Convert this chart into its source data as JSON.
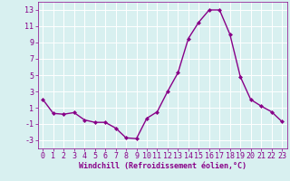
{
  "x": [
    0,
    1,
    2,
    3,
    4,
    5,
    6,
    7,
    8,
    9,
    10,
    11,
    12,
    13,
    14,
    15,
    16,
    17,
    18,
    19,
    20,
    21,
    22,
    23
  ],
  "y": [
    2.0,
    0.3,
    0.2,
    0.4,
    -0.5,
    -0.8,
    -0.8,
    -1.5,
    -2.7,
    -2.8,
    -0.3,
    0.5,
    3.0,
    5.3,
    9.5,
    11.5,
    13.0,
    13.0,
    10.0,
    4.8,
    2.0,
    1.2,
    0.5,
    -0.7
  ],
  "line_color": "#880088",
  "marker": "D",
  "marker_size": 2.0,
  "bg_color": "#d8f0f0",
  "grid_color": "#b8dede",
  "xlabel": "Windchill (Refroidissement éolien,°C)",
  "xlabel_color": "#880088",
  "tick_color": "#880088",
  "ylim": [
    -4,
    14
  ],
  "yticks": [
    -3,
    -1,
    1,
    3,
    5,
    7,
    9,
    11,
    13
  ],
  "xticks": [
    0,
    1,
    2,
    3,
    4,
    5,
    6,
    7,
    8,
    9,
    10,
    11,
    12,
    13,
    14,
    15,
    16,
    17,
    18,
    19,
    20,
    21,
    22,
    23
  ],
  "spine_color": "#880088",
  "linewidth": 1.0,
  "tick_fontsize": 6.0,
  "xlabel_fontsize": 6.0
}
